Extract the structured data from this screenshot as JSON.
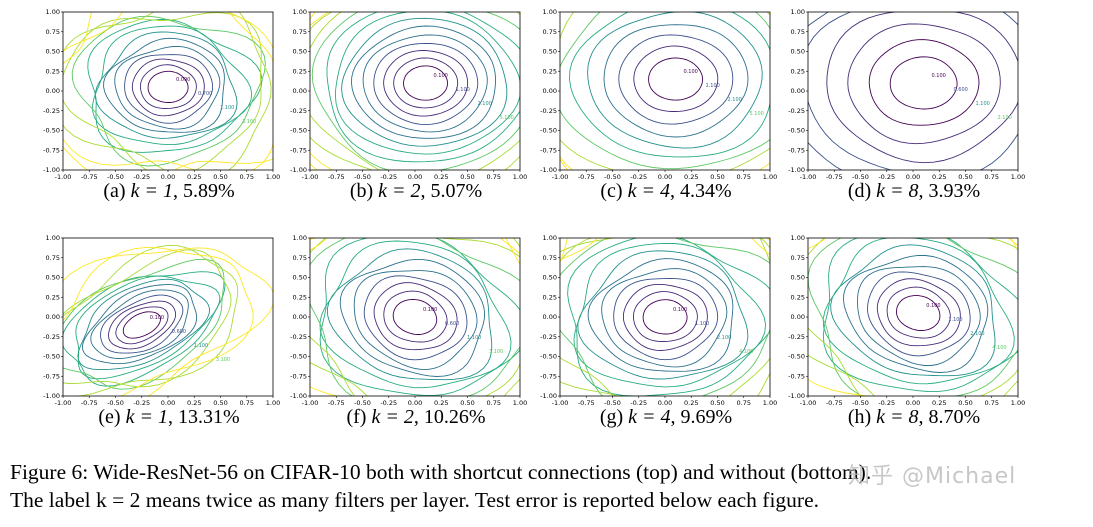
{
  "figure": {
    "caption_line1": "Figure 6: Wide-ResNet-56 on CIFAR-10 both with shortcut connections (top) and without (bottom).",
    "caption_line2": "The label k = 2 means twice as many filters per layer. Test error is reported below each figure.",
    "watermark": "知乎 @Michael"
  },
  "axis": {
    "ticks": [
      "-1.00",
      "-0.75",
      "-0.50",
      "-0.25",
      "0.00",
      "0.25",
      "0.50",
      "0.75",
      "1.00"
    ]
  },
  "chart_data": [
    {
      "type": "contour",
      "label": "(a)",
      "k": "k = 1",
      "err": ", 5.89%",
      "title": "(a) k = 1, 5.89%",
      "xlim": [
        -1,
        1
      ],
      "ylim": [
        -1,
        1
      ],
      "center": [
        0.0,
        0.05
      ],
      "levels": [
        "0.090",
        "0.700",
        "1.100",
        "3.100"
      ]
    },
    {
      "type": "contour",
      "label": "(b)",
      "k": "k = 2",
      "err": ", 5.07%",
      "title": "(b) k = 2, 5.07%",
      "xlim": [
        -1,
        1
      ],
      "ylim": [
        -1,
        1
      ],
      "center": [
        0.1,
        0.1
      ],
      "levels": [
        "0.100",
        "1.100",
        "2.100",
        "5.100"
      ]
    },
    {
      "type": "contour",
      "label": "(c)",
      "k": "k = 4",
      "err": ", 4.34%",
      "title": "(c) k = 4, 4.34%",
      "xlim": [
        -1,
        1
      ],
      "ylim": [
        -1,
        1
      ],
      "center": [
        0.1,
        0.15
      ],
      "levels": [
        "0.100",
        "1.100",
        "2.100",
        "5.100"
      ]
    },
    {
      "type": "contour",
      "label": "(d)",
      "k": "k = 8",
      "err": ", 3.93%",
      "title": "(d) k = 8, 3.93%",
      "xlim": [
        -1,
        1
      ],
      "ylim": [
        -1,
        1
      ],
      "center": [
        0.1,
        0.1
      ],
      "levels": [
        "0.100",
        "0.600",
        "1.100",
        "2.100"
      ]
    },
    {
      "type": "contour",
      "label": "(e)",
      "k": "k = 1",
      "err": ", 13.31%",
      "title": "(e) k = 1, 13.31%",
      "xlim": [
        -1,
        1
      ],
      "ylim": [
        -1,
        1
      ],
      "center": [
        -0.25,
        -0.1
      ],
      "levels": [
        "0.100",
        "0.600",
        "1.100",
        "3.100"
      ]
    },
    {
      "type": "contour",
      "label": "(f)",
      "k": "k = 2",
      "err": ", 10.26%",
      "title": "(f) k = 2, 10.26%",
      "xlim": [
        -1,
        1
      ],
      "ylim": [
        -1,
        1
      ],
      "center": [
        0.0,
        0.0
      ],
      "levels": [
        "0.100",
        "0.600",
        "1.100",
        "3.100"
      ]
    },
    {
      "type": "contour",
      "label": "(g)",
      "k": "k = 4",
      "err": ", 9.69%",
      "title": "(g) k = 4, 9.69%",
      "xlim": [
        -1,
        1
      ],
      "ylim": [
        -1,
        1
      ],
      "center": [
        0.0,
        0.0
      ],
      "levels": [
        "0.100",
        "1.100",
        "2.100",
        "4.100"
      ]
    },
    {
      "type": "contour",
      "label": "(h)",
      "k": "k = 8",
      "err": ", 8.70%",
      "title": "(h) k = 8, 8.70%",
      "xlim": [
        -1,
        1
      ],
      "ylim": [
        -1,
        1
      ],
      "center": [
        0.05,
        0.05
      ],
      "levels": [
        "0.100",
        "1.100",
        "2.100",
        "4.100"
      ]
    }
  ]
}
